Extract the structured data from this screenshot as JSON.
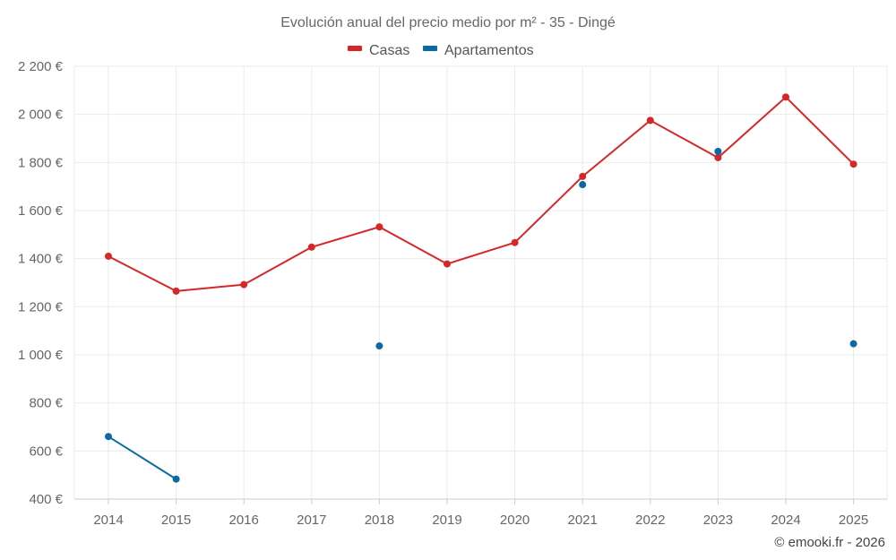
{
  "chart_data": {
    "type": "line",
    "title": "Evolución anual del precio medio por m² - 35 - Dingé",
    "categories": [
      "2014",
      "2015",
      "2016",
      "2017",
      "2018",
      "2019",
      "2020",
      "2021",
      "2022",
      "2023",
      "2024",
      "2025"
    ],
    "series": [
      {
        "name": "Casas",
        "color": "#d62728",
        "values": [
          1410,
          1265,
          1292,
          1448,
          1532,
          1378,
          1467,
          1742,
          1975,
          1820,
          2072,
          1793
        ]
      },
      {
        "name": "Apartamentos",
        "color": "#0b6aa2",
        "values": [
          660,
          483,
          null,
          null,
          1037,
          null,
          null,
          1708,
          null,
          1846,
          null,
          1046
        ]
      }
    ],
    "ylim": [
      400,
      2200
    ],
    "yticks": [
      400,
      600,
      800,
      1000,
      1200,
      1400,
      1600,
      1800,
      2000,
      2200
    ],
    "ytick_labels": [
      "400 €",
      "600 €",
      "800 €",
      "1 000 €",
      "1 200 €",
      "1 400 €",
      "1 600 €",
      "1 800 €",
      "2 000 €",
      "2 200 €"
    ],
    "grid": true,
    "legend_position": "top-center",
    "credit": "© emooki.fr - 2026"
  }
}
